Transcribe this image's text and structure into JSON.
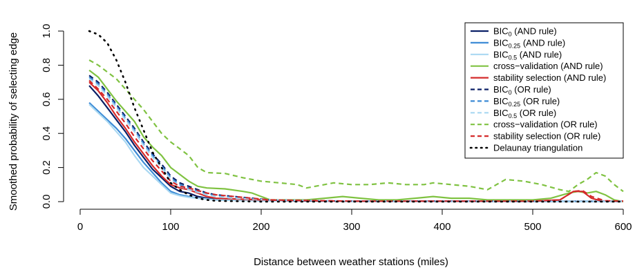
{
  "chart_data": {
    "type": "line",
    "xlabel": "Distance between weather stations (miles)",
    "ylabel": "Smoothed probability of selecting edge",
    "xlim": [
      0,
      600
    ],
    "ylim": [
      0,
      1
    ],
    "x_ticks": [
      "0",
      "100",
      "200",
      "300",
      "400",
      "500",
      "600"
    ],
    "y_ticks": [
      "0.0",
      "0.2",
      "0.4",
      "0.6",
      "0.8",
      "1.0"
    ],
    "grid": false,
    "legend_position": "top-right",
    "series": [
      {
        "name": "BIC_0 (AND rule)",
        "base": "BIC",
        "sub": "0",
        "suffix": " (AND rule)",
        "color": "#0a1f66",
        "dash": "solid",
        "points": [
          [
            10,
            0.68
          ],
          [
            20,
            0.62
          ],
          [
            30,
            0.55
          ],
          [
            40,
            0.48
          ],
          [
            50,
            0.41
          ],
          [
            60,
            0.33
          ],
          [
            70,
            0.26
          ],
          [
            80,
            0.19
          ],
          [
            90,
            0.14
          ],
          [
            100,
            0.09
          ],
          [
            110,
            0.06
          ],
          [
            120,
            0.05
          ],
          [
            130,
            0.03
          ],
          [
            140,
            0.02
          ],
          [
            150,
            0.015
          ],
          [
            170,
            0.01
          ],
          [
            200,
            0.005
          ],
          [
            250,
            0.005
          ],
          [
            300,
            0.003
          ],
          [
            400,
            0.003
          ],
          [
            500,
            0.002
          ],
          [
            600,
            0.002
          ]
        ]
      },
      {
        "name": "BIC_0.25 (AND rule)",
        "base": "BIC",
        "sub": "0.25",
        "suffix": " (AND rule)",
        "color": "#3d8bd6",
        "dash": "solid",
        "points": [
          [
            10,
            0.58
          ],
          [
            20,
            0.53
          ],
          [
            30,
            0.48
          ],
          [
            40,
            0.43
          ],
          [
            50,
            0.37
          ],
          [
            60,
            0.3
          ],
          [
            70,
            0.23
          ],
          [
            80,
            0.17
          ],
          [
            90,
            0.11
          ],
          [
            100,
            0.06
          ],
          [
            110,
            0.04
          ],
          [
            120,
            0.03
          ],
          [
            130,
            0.02
          ],
          [
            150,
            0.01
          ],
          [
            200,
            0.005
          ],
          [
            300,
            0.002
          ],
          [
            400,
            0.002
          ],
          [
            500,
            0.001
          ],
          [
            600,
            0.001
          ]
        ]
      },
      {
        "name": "BIC_0.5 (AND rule)",
        "base": "BIC",
        "sub": "0.5",
        "suffix": " (AND rule)",
        "color": "#a9d8f2",
        "dash": "solid",
        "points": [
          [
            10,
            0.57
          ],
          [
            20,
            0.52
          ],
          [
            30,
            0.47
          ],
          [
            40,
            0.41
          ],
          [
            50,
            0.35
          ],
          [
            60,
            0.27
          ],
          [
            70,
            0.2
          ],
          [
            80,
            0.15
          ],
          [
            90,
            0.1
          ],
          [
            100,
            0.05
          ],
          [
            110,
            0.035
          ],
          [
            120,
            0.025
          ],
          [
            130,
            0.02
          ],
          [
            150,
            0.01
          ],
          [
            200,
            0.005
          ],
          [
            300,
            0.002
          ],
          [
            400,
            0.002
          ],
          [
            500,
            0.001
          ],
          [
            600,
            0.001
          ]
        ]
      },
      {
        "name": "cross-validation (AND rule)",
        "base": "cross−validation (AND rule)",
        "sub": "",
        "suffix": "",
        "color": "#7fc241",
        "dash": "solid",
        "points": [
          [
            10,
            0.77
          ],
          [
            20,
            0.73
          ],
          [
            30,
            0.66
          ],
          [
            40,
            0.59
          ],
          [
            50,
            0.53
          ],
          [
            60,
            0.47
          ],
          [
            70,
            0.38
          ],
          [
            80,
            0.32
          ],
          [
            90,
            0.27
          ],
          [
            100,
            0.2
          ],
          [
            110,
            0.16
          ],
          [
            120,
            0.12
          ],
          [
            130,
            0.09
          ],
          [
            140,
            0.08
          ],
          [
            160,
            0.075
          ],
          [
            180,
            0.06
          ],
          [
            190,
            0.05
          ],
          [
            200,
            0.03
          ],
          [
            210,
            0.01
          ],
          [
            250,
            0.01
          ],
          [
            270,
            0.02
          ],
          [
            290,
            0.03
          ],
          [
            310,
            0.02
          ],
          [
            330,
            0.01
          ],
          [
            350,
            0.01
          ],
          [
            370,
            0.02
          ],
          [
            390,
            0.03
          ],
          [
            410,
            0.02
          ],
          [
            430,
            0.02
          ],
          [
            450,
            0.01
          ],
          [
            480,
            0.01
          ],
          [
            500,
            0.01
          ],
          [
            520,
            0.02
          ],
          [
            540,
            0.05
          ],
          [
            550,
            0.06
          ],
          [
            560,
            0.05
          ],
          [
            570,
            0.06
          ],
          [
            580,
            0.04
          ],
          [
            590,
            0.01
          ],
          [
            600,
            0.0
          ]
        ]
      },
      {
        "name": "stability selection (AND rule)",
        "base": "stability selection (AND rule)",
        "sub": "",
        "suffix": "",
        "color": "#d42a2a",
        "dash": "solid",
        "points": [
          [
            10,
            0.7
          ],
          [
            20,
            0.65
          ],
          [
            30,
            0.58
          ],
          [
            40,
            0.5
          ],
          [
            50,
            0.43
          ],
          [
            60,
            0.35
          ],
          [
            70,
            0.28
          ],
          [
            80,
            0.21
          ],
          [
            90,
            0.15
          ],
          [
            100,
            0.1
          ],
          [
            110,
            0.08
          ],
          [
            120,
            0.07
          ],
          [
            130,
            0.05
          ],
          [
            140,
            0.03
          ],
          [
            150,
            0.02
          ],
          [
            200,
            0.01
          ],
          [
            250,
            0.005
          ],
          [
            300,
            0.003
          ],
          [
            400,
            0.003
          ],
          [
            500,
            0.003
          ],
          [
            530,
            0.01
          ],
          [
            545,
            0.06
          ],
          [
            555,
            0.06
          ],
          [
            565,
            0.02
          ],
          [
            575,
            0.005
          ],
          [
            600,
            0.003
          ]
        ]
      },
      {
        "name": "BIC_0 (OR rule)",
        "base": "BIC",
        "sub": "0",
        "suffix": " (OR rule)",
        "color": "#0a1f66",
        "dash": "dashed",
        "points": [
          [
            10,
            0.74
          ],
          [
            20,
            0.7
          ],
          [
            30,
            0.64
          ],
          [
            40,
            0.57
          ],
          [
            50,
            0.5
          ],
          [
            60,
            0.43
          ],
          [
            70,
            0.35
          ],
          [
            80,
            0.28
          ],
          [
            90,
            0.22
          ],
          [
            100,
            0.15
          ],
          [
            110,
            0.11
          ],
          [
            120,
            0.09
          ],
          [
            130,
            0.07
          ],
          [
            140,
            0.05
          ],
          [
            150,
            0.04
          ],
          [
            170,
            0.03
          ],
          [
            190,
            0.02
          ],
          [
            210,
            0.01
          ],
          [
            250,
            0.005
          ],
          [
            300,
            0.003
          ],
          [
            400,
            0.003
          ],
          [
            500,
            0.002
          ],
          [
            600,
            0.002
          ]
        ]
      },
      {
        "name": "BIC_0.25 (OR rule)",
        "base": "BIC",
        "sub": "0.25",
        "suffix": " (OR rule)",
        "color": "#3d8bd6",
        "dash": "dashed",
        "points": [
          [
            10,
            0.73
          ],
          [
            20,
            0.69
          ],
          [
            30,
            0.63
          ],
          [
            40,
            0.56
          ],
          [
            50,
            0.49
          ],
          [
            60,
            0.42
          ],
          [
            70,
            0.34
          ],
          [
            80,
            0.27
          ],
          [
            90,
            0.21
          ],
          [
            100,
            0.14
          ],
          [
            110,
            0.1
          ],
          [
            120,
            0.08
          ],
          [
            130,
            0.06
          ],
          [
            140,
            0.045
          ],
          [
            150,
            0.035
          ],
          [
            170,
            0.025
          ],
          [
            190,
            0.015
          ],
          [
            210,
            0.01
          ],
          [
            300,
            0.003
          ],
          [
            400,
            0.002
          ],
          [
            600,
            0.002
          ]
        ]
      },
      {
        "name": "BIC_0.5 (OR rule)",
        "base": "BIC",
        "sub": "0.5",
        "suffix": " (OR rule)",
        "color": "#a9d8f2",
        "dash": "dashed",
        "points": [
          [
            10,
            0.72
          ],
          [
            20,
            0.68
          ],
          [
            30,
            0.62
          ],
          [
            40,
            0.55
          ],
          [
            50,
            0.48
          ],
          [
            60,
            0.41
          ],
          [
            70,
            0.33
          ],
          [
            80,
            0.26
          ],
          [
            90,
            0.2
          ],
          [
            100,
            0.13
          ],
          [
            110,
            0.09
          ],
          [
            120,
            0.07
          ],
          [
            130,
            0.055
          ],
          [
            140,
            0.04
          ],
          [
            150,
            0.03
          ],
          [
            170,
            0.02
          ],
          [
            190,
            0.015
          ],
          [
            210,
            0.01
          ],
          [
            300,
            0.003
          ],
          [
            400,
            0.002
          ],
          [
            600,
            0.002
          ]
        ]
      },
      {
        "name": "cross-validation (OR rule)",
        "base": "cross−validation (OR rule)",
        "sub": "",
        "suffix": "",
        "color": "#7fc241",
        "dash": "dashed",
        "points": [
          [
            10,
            0.83
          ],
          [
            20,
            0.8
          ],
          [
            30,
            0.76
          ],
          [
            40,
            0.72
          ],
          [
            50,
            0.66
          ],
          [
            60,
            0.6
          ],
          [
            70,
            0.54
          ],
          [
            80,
            0.47
          ],
          [
            90,
            0.4
          ],
          [
            100,
            0.35
          ],
          [
            110,
            0.31
          ],
          [
            120,
            0.27
          ],
          [
            130,
            0.2
          ],
          [
            140,
            0.17
          ],
          [
            160,
            0.165
          ],
          [
            180,
            0.14
          ],
          [
            200,
            0.12
          ],
          [
            220,
            0.11
          ],
          [
            240,
            0.1
          ],
          [
            250,
            0.08
          ],
          [
            270,
            0.1
          ],
          [
            280,
            0.11
          ],
          [
            300,
            0.1
          ],
          [
            320,
            0.1
          ],
          [
            340,
            0.11
          ],
          [
            360,
            0.1
          ],
          [
            380,
            0.1
          ],
          [
            390,
            0.11
          ],
          [
            410,
            0.1
          ],
          [
            430,
            0.09
          ],
          [
            450,
            0.07
          ],
          [
            460,
            0.1
          ],
          [
            470,
            0.13
          ],
          [
            490,
            0.12
          ],
          [
            510,
            0.1
          ],
          [
            530,
            0.07
          ],
          [
            540,
            0.06
          ],
          [
            550,
            0.1
          ],
          [
            560,
            0.13
          ],
          [
            570,
            0.17
          ],
          [
            580,
            0.15
          ],
          [
            590,
            0.1
          ],
          [
            600,
            0.06
          ]
        ]
      },
      {
        "name": "stability selection (OR rule)",
        "base": "stability selection (OR rule)",
        "sub": "",
        "suffix": "",
        "color": "#d42a2a",
        "dash": "dashed",
        "points": [
          [
            10,
            0.71
          ],
          [
            20,
            0.66
          ],
          [
            30,
            0.6
          ],
          [
            40,
            0.53
          ],
          [
            50,
            0.46
          ],
          [
            60,
            0.38
          ],
          [
            70,
            0.31
          ],
          [
            80,
            0.24
          ],
          [
            90,
            0.18
          ],
          [
            100,
            0.12
          ],
          [
            110,
            0.09
          ],
          [
            120,
            0.08
          ],
          [
            130,
            0.065
          ],
          [
            140,
            0.05
          ],
          [
            150,
            0.04
          ],
          [
            170,
            0.03
          ],
          [
            190,
            0.02
          ],
          [
            210,
            0.01
          ],
          [
            300,
            0.003
          ],
          [
            400,
            0.003
          ],
          [
            500,
            0.003
          ],
          [
            530,
            0.01
          ],
          [
            545,
            0.06
          ],
          [
            555,
            0.065
          ],
          [
            565,
            0.03
          ],
          [
            580,
            0.005
          ],
          [
            600,
            0.003
          ]
        ]
      },
      {
        "name": "Delaunay triangulation",
        "base": "Delaunay triangulation",
        "sub": "",
        "suffix": "",
        "color": "#000000",
        "dash": "dotted",
        "points": [
          [
            10,
            1.0
          ],
          [
            20,
            0.98
          ],
          [
            30,
            0.93
          ],
          [
            40,
            0.83
          ],
          [
            50,
            0.7
          ],
          [
            60,
            0.55
          ],
          [
            70,
            0.42
          ],
          [
            80,
            0.29
          ],
          [
            90,
            0.2
          ],
          [
            100,
            0.11
          ],
          [
            110,
            0.07
          ],
          [
            120,
            0.04
          ],
          [
            130,
            0.02
          ],
          [
            140,
            0.01
          ],
          [
            150,
            0.005
          ],
          [
            200,
            0.0
          ],
          [
            300,
            0.0
          ],
          [
            400,
            0.0
          ],
          [
            500,
            0.0
          ],
          [
            600,
            0.0
          ]
        ]
      }
    ]
  }
}
